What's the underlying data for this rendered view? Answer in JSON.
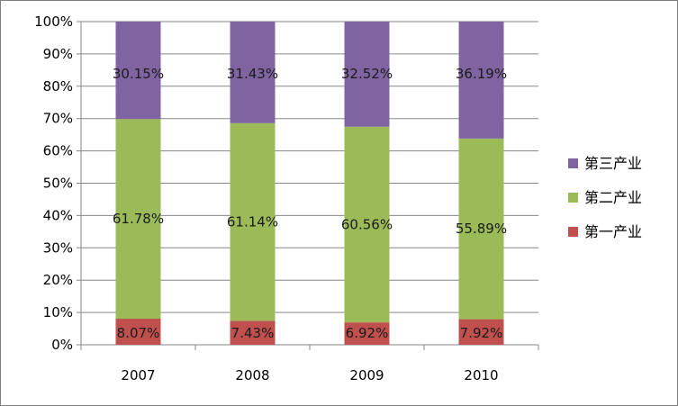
{
  "chart_data": {
    "type": "bar",
    "stacked": "percent",
    "categories": [
      "2007",
      "2008",
      "2009",
      "2010"
    ],
    "series": [
      {
        "name": "第一产业",
        "color": "#c0504d",
        "values": [
          8.07,
          7.43,
          6.92,
          7.92
        ],
        "labels": [
          "8.07%",
          "7.43%",
          "6.92%",
          "7.92%"
        ]
      },
      {
        "name": "第二产业",
        "color": "#9bbb59",
        "values": [
          61.78,
          61.14,
          60.56,
          55.89
        ],
        "labels": [
          "61.78%",
          "61.14%",
          "60.56%",
          "55.89%"
        ]
      },
      {
        "name": "第三产业",
        "color": "#8064a2",
        "values": [
          30.15,
          31.43,
          32.52,
          36.19
        ],
        "labels": [
          "30.15%",
          "31.43%",
          "32.52%",
          "36.19%"
        ]
      }
    ],
    "y_ticks": [
      "0%",
      "10%",
      "20%",
      "30%",
      "40%",
      "50%",
      "60%",
      "70%",
      "80%",
      "90%",
      "100%"
    ],
    "ylim": [
      0,
      100
    ],
    "grid": true,
    "legend": [
      "第三产业",
      "第二产业",
      "第一产业"
    ],
    "legend_position": "right",
    "title": "",
    "xlabel": "",
    "ylabel": ""
  }
}
